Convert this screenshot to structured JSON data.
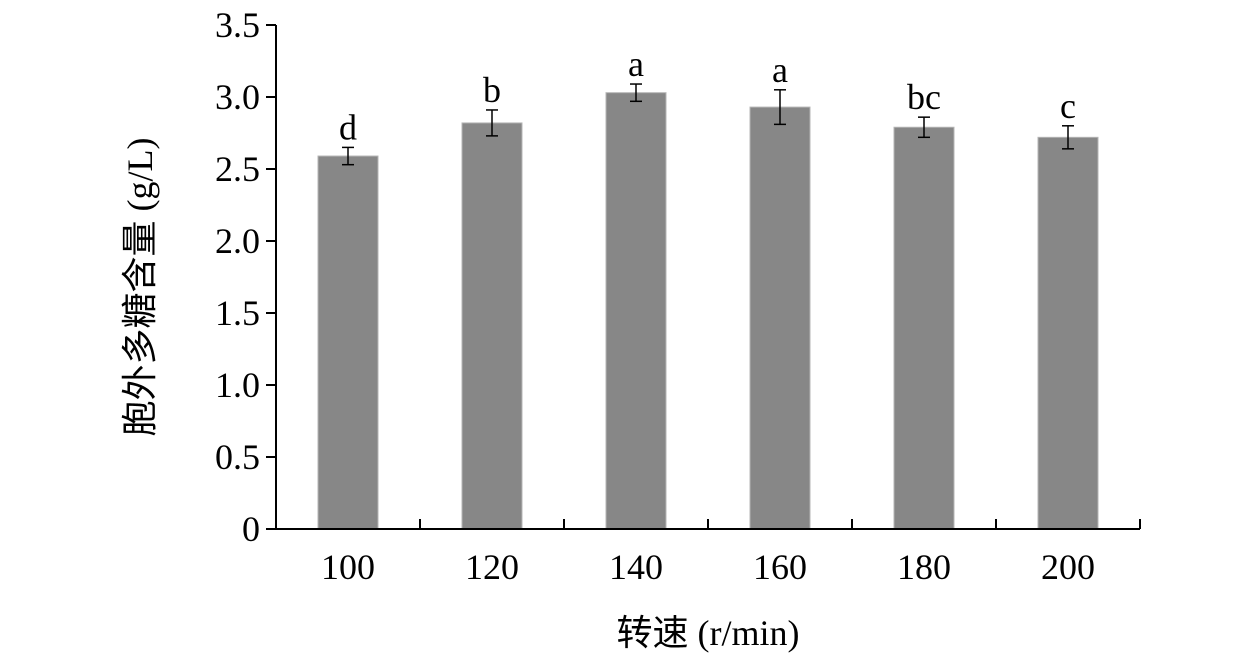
{
  "chart_data": {
    "type": "bar",
    "xlabel": "转速 (r/min)",
    "ylabel": "胞外多糖含量 (g/L)",
    "categories": [
      "100",
      "120",
      "140",
      "160",
      "180",
      "200"
    ],
    "values": [
      2.59,
      2.82,
      3.03,
      2.93,
      2.79,
      2.72
    ],
    "errors": [
      0.06,
      0.09,
      0.06,
      0.12,
      0.07,
      0.08
    ],
    "significance_labels": [
      "d",
      "b",
      "a",
      "a",
      "bc",
      "c"
    ],
    "ylim": [
      0,
      3.5
    ],
    "yticks": [
      0,
      0.5,
      1.0,
      1.5,
      2.0,
      2.5,
      3.0,
      3.5
    ],
    "ytick_labels": [
      "0",
      "0.5",
      "1.0",
      "1.5",
      "2.0",
      "2.5",
      "3.0",
      "3.5"
    ],
    "bar_color": "#878787",
    "grid": false,
    "legend": "none"
  }
}
